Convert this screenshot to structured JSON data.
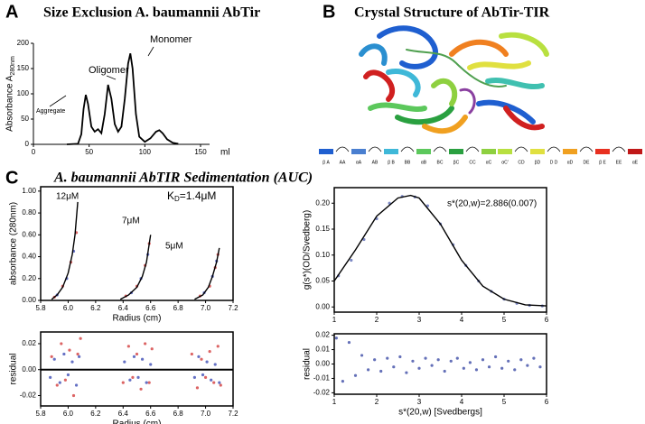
{
  "panels": [
    "A",
    "B",
    "C"
  ],
  "section_title": "A. baumannii AbTIR Sedimentation  (AUC)",
  "structure": {
    "title": "Crystal Structure of AbTir-TIR",
    "elements": [
      {
        "label": "β A",
        "color": "#1f5fd0"
      },
      {
        "label": "AA",
        "color": "#000"
      },
      {
        "label": "αA",
        "color": "#4a7fd0"
      },
      {
        "label": "AB",
        "color": "#000"
      },
      {
        "label": "β B",
        "color": "#3fb8d8"
      },
      {
        "label": "BB",
        "color": "#000"
      },
      {
        "label": "αB",
        "color": "#5cc85c"
      },
      {
        "label": "BC",
        "color": "#000"
      },
      {
        "label": "βC",
        "color": "#2aa040"
      },
      {
        "label": "CC",
        "color": "#000"
      },
      {
        "label": "αC",
        "color": "#8ed040"
      },
      {
        "label": "αC'",
        "color": "#b8e040"
      },
      {
        "label": "CD",
        "color": "#000"
      },
      {
        "label": "βD",
        "color": "#e0e040"
      },
      {
        "label": "D D",
        "color": "#000"
      },
      {
        "label": "αD",
        "color": "#f0a020"
      },
      {
        "label": "DE",
        "color": "#000"
      },
      {
        "label": "β E",
        "color": "#e83020"
      },
      {
        "label": "EE",
        "color": "#000"
      },
      {
        "label": "αE",
        "color": "#c01818"
      }
    ]
  },
  "chart_data": [
    {
      "type": "line",
      "title": "Size Exclusion  A. baumannii  AbTir",
      "y_label": "Absorbance A",
      "y_label_sub": "280nm",
      "x_label": "ml",
      "frame": "axes",
      "annotations": [
        "Aggregate",
        "Oligomer",
        "Monomer"
      ],
      "xlim": [
        0,
        150
      ],
      "xticks": [
        0,
        50,
        100,
        150
      ],
      "ylim": [
        0,
        200
      ],
      "yticks": [
        0,
        50,
        100,
        150,
        200
      ],
      "x": [
        30,
        40,
        43,
        45,
        47,
        49,
        52,
        55,
        58,
        61,
        64,
        67,
        70,
        73,
        76,
        79,
        82,
        85,
        87,
        89,
        92,
        95,
        100,
        105,
        110,
        113,
        116,
        120,
        125,
        130
      ],
      "series": [
        {
          "color": "#000",
          "style": "line",
          "values": [
            0,
            1,
            20,
            70,
            98,
            80,
            35,
            25,
            30,
            22,
            60,
            118,
            90,
            40,
            25,
            35,
            90,
            160,
            180,
            150,
            60,
            15,
            5,
            12,
            25,
            28,
            22,
            10,
            3,
            1
          ]
        }
      ]
    },
    {
      "type": "line",
      "y_label": "absorbance (280nm)",
      "x_label": "Radius (cm)",
      "frame": "box",
      "annotations": [
        "12μM",
        "7μM",
        "5μM"
      ],
      "kd": {
        "main": "K",
        "sub": "D",
        "rest": "=1.4μM"
      },
      "xlim": [
        5.8,
        7.2
      ],
      "xticks": [
        {
          "value": 5.8,
          "label": "5.8"
        },
        {
          "value": 6.0,
          "label": "6.0"
        },
        {
          "value": 6.2,
          "label": "6.2"
        },
        {
          "value": 6.4,
          "label": "6.4"
        },
        {
          "value": 6.6,
          "label": "6.6"
        },
        {
          "value": 6.8,
          "label": "6.8"
        },
        {
          "value": 7.0,
          "label": "7.0"
        },
        {
          "value": 7.2,
          "label": "7.2"
        }
      ],
      "ylim": [
        0,
        1.04
      ],
      "yticks": [
        {
          "value": 0,
          "label": "0.00"
        },
        {
          "value": 0.2,
          "label": "0.20"
        },
        {
          "value": 0.4,
          "label": "0.40"
        },
        {
          "value": 0.6,
          "label": "0.60"
        },
        {
          "value": 0.8,
          "label": "0.80"
        },
        {
          "value": 1.0,
          "label": "1.00"
        }
      ],
      "series": [
        {
          "color": "#d03030",
          "style": "points",
          "x": [
            5.9,
            5.96,
            6.02,
            6.06,
            6.42,
            6.5,
            6.56,
            6.59,
            6.96,
            7.03,
            7.07,
            7.09
          ],
          "values": [
            0.03,
            0.13,
            0.35,
            0.62,
            0.04,
            0.13,
            0.32,
            0.52,
            0.04,
            0.13,
            0.3,
            0.42
          ]
        },
        {
          "color": "#3040b0",
          "style": "points",
          "x": [
            5.92,
            5.99,
            6.04,
            6.46,
            6.53,
            6.58,
            6.99,
            7.05,
            7.08
          ],
          "values": [
            0.05,
            0.2,
            0.45,
            0.07,
            0.2,
            0.42,
            0.07,
            0.22,
            0.36
          ]
        },
        {
          "color": "#000",
          "style": "line",
          "x": [
            5.88,
            5.92,
            5.96,
            6.0,
            6.03,
            6.05,
            6.07
          ],
          "values": [
            0.01,
            0.05,
            0.12,
            0.25,
            0.42,
            0.6,
            0.9
          ]
        },
        {
          "color": "#000",
          "style": "line",
          "x": [
            6.38,
            6.44,
            6.5,
            6.54,
            6.57,
            6.6
          ],
          "values": [
            0.01,
            0.05,
            0.12,
            0.22,
            0.35,
            0.6
          ]
        },
        {
          "color": "#000",
          "style": "line",
          "x": [
            6.92,
            6.98,
            7.02,
            7.05,
            7.08,
            7.1
          ],
          "values": [
            0.01,
            0.05,
            0.12,
            0.22,
            0.35,
            0.48
          ]
        }
      ]
    },
    {
      "type": "scatter",
      "y_label": "residual",
      "x_label": "Radius (cm)",
      "frame": "box",
      "zero_line": 0,
      "xlim": [
        5.8,
        7.2
      ],
      "xticks": [
        {
          "value": 5.8,
          "label": "5.8"
        },
        {
          "value": 6.0,
          "label": "6.0"
        },
        {
          "value": 6.2,
          "label": "6.2"
        },
        {
          "value": 6.4,
          "label": "6.4"
        },
        {
          "value": 6.6,
          "label": "6.6"
        },
        {
          "value": 6.8,
          "label": "6.8"
        },
        {
          "value": 7.0,
          "label": "7.0"
        },
        {
          "value": 7.2,
          "label": "7.2"
        }
      ],
      "ylim": [
        -0.028,
        0.029
      ],
      "yticks": [
        {
          "value": -0.02,
          "label": "-0.02"
        },
        {
          "value": 0,
          "label": "0.00"
        },
        {
          "value": 0.02,
          "label": "0.02"
        }
      ],
      "series": [
        {
          "color": "#d03030",
          "style": "points",
          "x": [
            5.88,
            5.92,
            5.95,
            5.98,
            6.01,
            6.04,
            6.07,
            6.09,
            6.4,
            6.44,
            6.47,
            6.5,
            6.53,
            6.56,
            6.59,
            6.61,
            6.9,
            6.94,
            6.97,
            7.0,
            7.03,
            7.06,
            7.09,
            7.11
          ],
          "values": [
            0.01,
            -0.012,
            0.02,
            -0.008,
            0.015,
            -0.02,
            0.012,
            0.024,
            -0.01,
            0.018,
            -0.006,
            0.012,
            -0.015,
            0.02,
            -0.01,
            0.016,
            0.012,
            -0.014,
            0.008,
            -0.006,
            0.014,
            -0.01,
            0.018,
            -0.012
          ]
        },
        {
          "color": "#3040b0",
          "style": "points",
          "x": [
            5.87,
            5.9,
            5.94,
            5.97,
            6.0,
            6.03,
            6.06,
            6.08,
            6.41,
            6.45,
            6.48,
            6.51,
            6.54,
            6.57,
            6.6,
            6.92,
            6.95,
            6.98,
            7.01,
            7.04,
            7.07,
            7.1
          ],
          "values": [
            -0.006,
            0.008,
            -0.01,
            0.012,
            -0.004,
            0.006,
            -0.012,
            0.01,
            0.006,
            -0.008,
            0.01,
            -0.006,
            0.008,
            -0.01,
            0.004,
            -0.006,
            0.01,
            -0.004,
            0.006,
            -0.008,
            0.004,
            -0.01
          ]
        }
      ]
    },
    {
      "type": "line",
      "y_label": "g(s*)(OD/Svedberg)",
      "frame": "box",
      "annotations": [
        "s*(20,w)=2.886(0.007)"
      ],
      "xlim": [
        1,
        6
      ],
      "xticks": [
        1,
        2,
        3,
        4,
        5,
        6
      ],
      "ylim": [
        -0.01,
        0.23
      ],
      "yticks": [
        {
          "value": 0,
          "label": "0.00"
        },
        {
          "value": 0.05,
          "label": "0.05"
        },
        {
          "value": 0.1,
          "label": "0.10"
        },
        {
          "value": 0.15,
          "label": "0.15"
        },
        {
          "value": 0.2,
          "label": "0.20"
        }
      ],
      "series": [
        {
          "color": "#5060b0",
          "style": "points",
          "x": [
            1.1,
            1.4,
            1.7,
            2.0,
            2.3,
            2.6,
            2.9,
            3.2,
            3.5,
            3.8,
            4.1,
            4.4,
            4.7,
            5.0,
            5.3,
            5.6,
            5.9
          ],
          "values": [
            0.06,
            0.09,
            0.13,
            0.17,
            0.2,
            0.213,
            0.212,
            0.195,
            0.16,
            0.12,
            0.08,
            0.05,
            0.03,
            0.015,
            0.007,
            0.003,
            0.002
          ]
        },
        {
          "color": "#000",
          "style": "line",
          "x": [
            1,
            1.5,
            2,
            2.5,
            2.8,
            3,
            3.5,
            4,
            4.5,
            5,
            5.5,
            6
          ],
          "values": [
            0.05,
            0.11,
            0.175,
            0.21,
            0.215,
            0.21,
            0.16,
            0.09,
            0.04,
            0.015,
            0.004,
            0.002
          ]
        }
      ]
    },
    {
      "type": "scatter",
      "y_label": "residual",
      "x_label": "s*(20,w) [Svedbergs]",
      "frame": "box",
      "xlim": [
        1,
        6
      ],
      "xticks": [
        1,
        2,
        3,
        4,
        5,
        6
      ],
      "ylim": [
        -0.021,
        0.021
      ],
      "yticks": [
        {
          "value": -0.02,
          "label": "-0.02"
        },
        {
          "value": -0.01,
          "label": "-0.01"
        },
        {
          "value": 0,
          "label": "0.00"
        },
        {
          "value": 0.01,
          "label": "0.01"
        },
        {
          "value": 0.02,
          "label": "0.02"
        }
      ],
      "series": [
        {
          "color": "#3040a0",
          "style": "points",
          "x": [
            1.05,
            1.2,
            1.35,
            1.5,
            1.65,
            1.8,
            1.95,
            2.1,
            2.25,
            2.4,
            2.55,
            2.7,
            2.85,
            3.0,
            3.15,
            3.3,
            3.45,
            3.6,
            3.75,
            3.9,
            4.05,
            4.2,
            4.35,
            4.5,
            4.65,
            4.8,
            4.95,
            5.1,
            5.25,
            5.4,
            5.55,
            5.7,
            5.85
          ],
          "values": [
            0.018,
            -0.012,
            0.015,
            -0.008,
            0.006,
            -0.004,
            0.003,
            -0.005,
            0.004,
            -0.002,
            0.005,
            -0.006,
            0.002,
            -0.003,
            0.004,
            -0.001,
            0.003,
            -0.005,
            0.002,
            0.004,
            -0.003,
            0.001,
            -0.004,
            0.003,
            -0.002,
            0.005,
            -0.003,
            0.002,
            -0.004,
            0.003,
            -0.001,
            0.004,
            -0.002
          ]
        }
      ]
    }
  ]
}
